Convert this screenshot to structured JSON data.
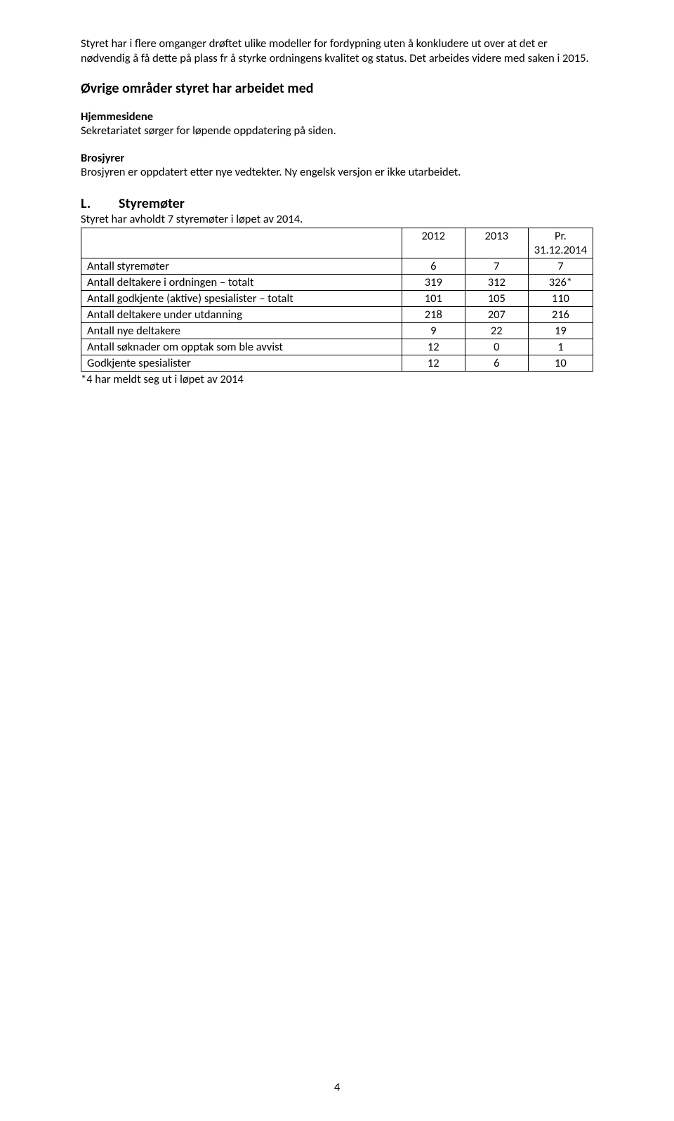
{
  "para1": "Styret har i flere omganger drøftet ulike modeller for fordypning uten å konkludere ut over at det er nødvendig å få dette på plass fr å styrke ordningens kvalitet og status. Det arbeides videre med saken i 2015.",
  "section_heading": "Øvrige områder styret har arbeidet med",
  "hjemmesidene": {
    "title": "Hjemmesidene",
    "text": "Sekretariatet sørger for løpende oppdatering på siden."
  },
  "brosjyrer": {
    "title": "Brosjyrer",
    "text": "Brosjyren er oppdatert etter nye vedtekter. Ny engelsk versjon er ikke utarbeidet."
  },
  "section_L": {
    "letter": "L.",
    "title": "Styremøter",
    "intro": "Styret har avholdt 7 styremøter i løpet av 2014."
  },
  "table": {
    "columns": [
      "",
      "2012",
      "2013",
      "Pr. 31.12.2014"
    ],
    "rows": [
      [
        "Antall styremøter",
        "6",
        "7",
        "7"
      ],
      [
        "Antall deltakere i ordningen – totalt",
        "319",
        "312",
        "326*"
      ],
      [
        "Antall godkjente (aktive) spesialister – totalt",
        "101",
        "105",
        "110"
      ],
      [
        "Antall deltakere under utdanning",
        "218",
        "207",
        "216"
      ],
      [
        "Antall nye deltakere",
        "9",
        "22",
        "19"
      ],
      [
        "Antall søknader om opptak som ble avvist",
        "12",
        "0",
        "1"
      ],
      [
        "Godkjente spesialister",
        "12",
        "6",
        "10"
      ]
    ],
    "col_widths": [
      "auto",
      "90px",
      "90px",
      "128px"
    ]
  },
  "footnote": "*4 har meldt seg ut i løpet av 2014",
  "page_number": "4"
}
